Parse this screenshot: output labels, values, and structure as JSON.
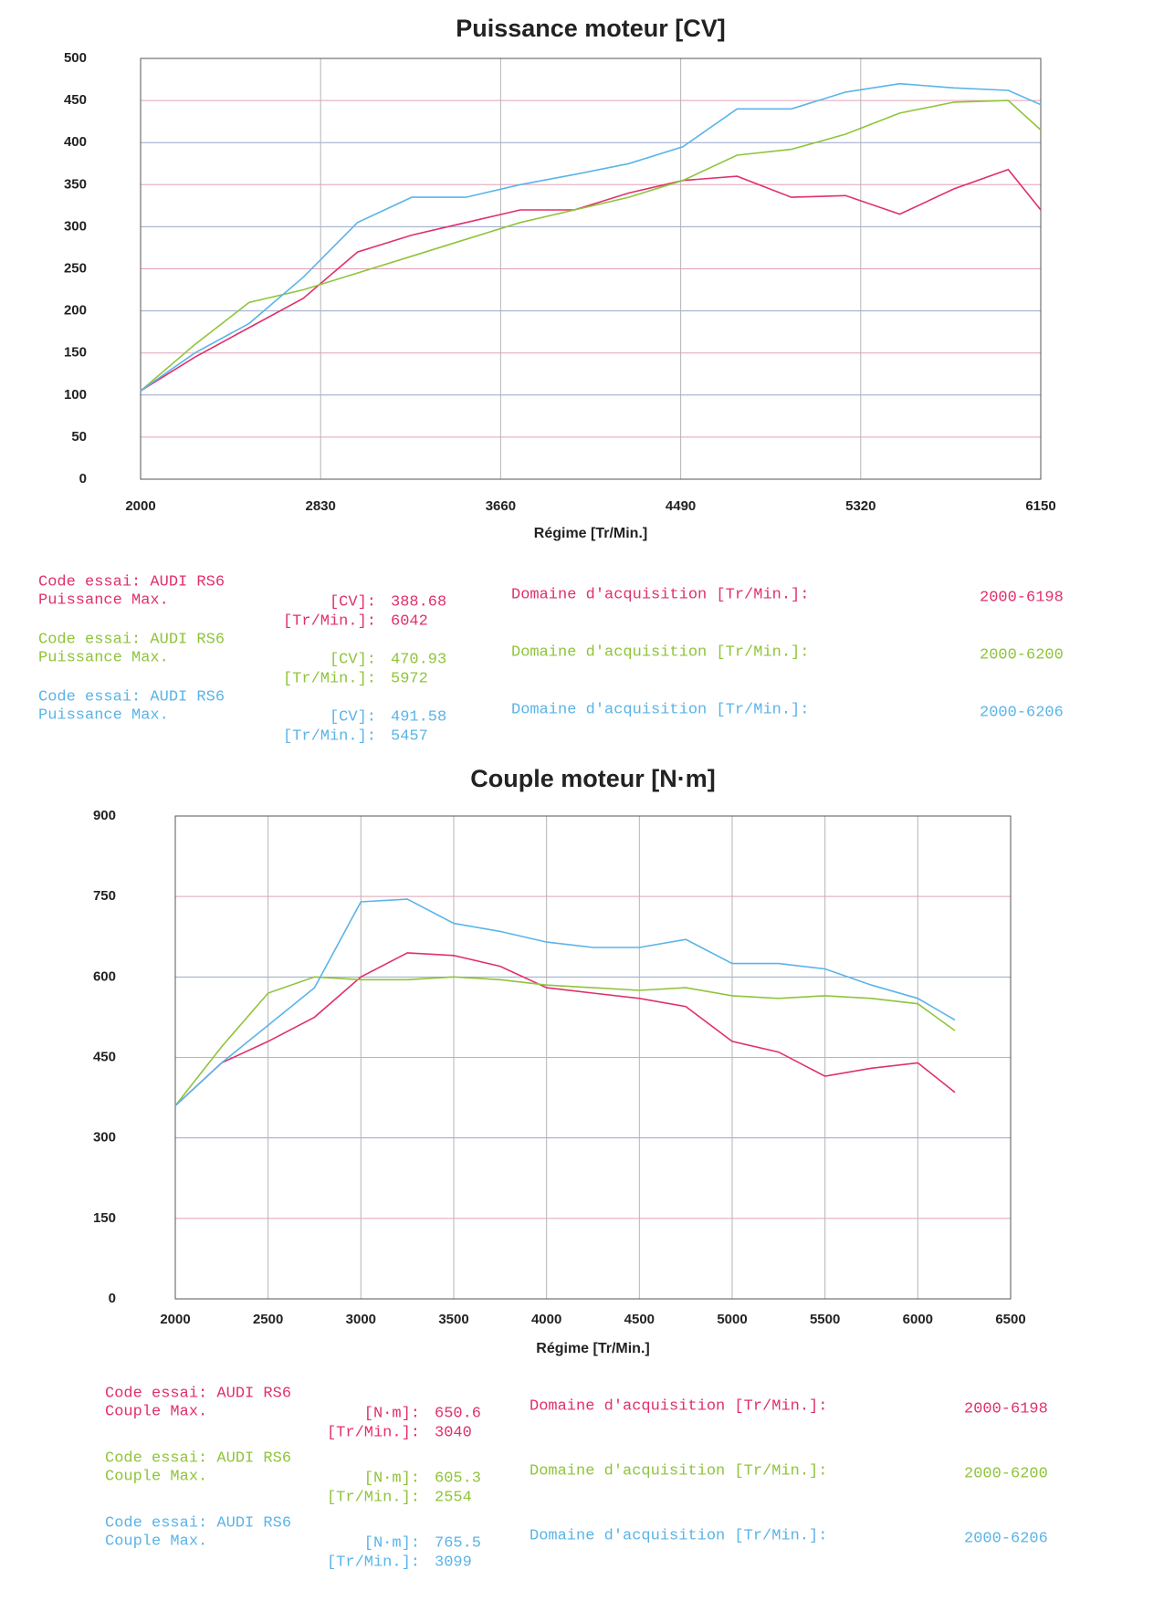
{
  "chart_data": [
    {
      "type": "line",
      "title": "Puissance moteur  [CV]",
      "x_label": "Régime [Tr/Min.]",
      "x": [
        2000,
        2250,
        2500,
        2750,
        3000,
        3250,
        3500,
        3750,
        4000,
        4250,
        4500,
        4750,
        5000,
        5250,
        5500,
        5750,
        6000,
        6150
      ],
      "xlim": [
        2000,
        6150
      ],
      "xticks": [
        2000,
        2830,
        3660,
        4490,
        5320,
        6150
      ],
      "ylim": [
        0,
        500
      ],
      "yticks": [
        0,
        50,
        100,
        150,
        200,
        250,
        300,
        350,
        400,
        450,
        500
      ],
      "grid": true,
      "series": [
        {
          "name": "AUDI RS6",
          "color": "#e0306a",
          "values": [
            105,
            145,
            180,
            215,
            270,
            290,
            305,
            320,
            320,
            340,
            355,
            360,
            335,
            337,
            315,
            345,
            368,
            320
          ]
        },
        {
          "name": "AUDI RS6",
          "color": "#8fc43a",
          "values": [
            105,
            160,
            210,
            225,
            245,
            265,
            285,
            305,
            320,
            335,
            355,
            385,
            392,
            410,
            435,
            448,
            450,
            415
          ]
        },
        {
          "name": "AUDI RS6",
          "color": "#5ab4e8",
          "values": [
            105,
            150,
            185,
            240,
            305,
            335,
            335,
            350,
            362,
            375,
            395,
            440,
            440,
            460,
            470,
            465,
            462,
            445
          ]
        }
      ],
      "results": [
        {
          "code": "Code essai: AUDI RS6",
          "max_label": "Puissance Max.",
          "unit_label": "[CV]:",
          "max_value": 388.68,
          "rpm_label": "[Tr/Min.]:",
          "rpm_value": 6042,
          "range_label": "Domaine d'acquisition [Tr/Min.]:",
          "range": "2000-6198"
        },
        {
          "code": "Code essai: AUDI RS6",
          "max_label": "Puissance Max.",
          "unit_label": "[CV]:",
          "max_value": 470.93,
          "rpm_label": "[Tr/Min.]:",
          "rpm_value": 5972,
          "range_label": "Domaine d'acquisition [Tr/Min.]:",
          "range": "2000-6200"
        },
        {
          "code": "Code essai: AUDI RS6",
          "max_label": "Puissance Max.",
          "unit_label": "[CV]:",
          "max_value": 491.58,
          "rpm_label": "[Tr/Min.]:",
          "rpm_value": 5457,
          "range_label": "Domaine d'acquisition [Tr/Min.]:",
          "range": "2000-6206"
        }
      ]
    },
    {
      "type": "line",
      "title": "Couple moteur [N·m]",
      "x_label": "Régime [Tr/Min.]",
      "x": [
        2000,
        2250,
        2500,
        2750,
        3000,
        3250,
        3500,
        3750,
        4000,
        4250,
        4500,
        4750,
        5000,
        5250,
        5500,
        5750,
        6000,
        6200
      ],
      "xlim": [
        2000,
        6500
      ],
      "xticks": [
        2000,
        2500,
        3000,
        3500,
        4000,
        4500,
        5000,
        5500,
        6000,
        6500
      ],
      "ylim": [
        0,
        900
      ],
      "yticks": [
        0,
        150,
        300,
        450,
        600,
        750,
        900
      ],
      "grid": true,
      "series": [
        {
          "name": "AUDI RS6",
          "color": "#e0306a",
          "values": [
            360,
            440,
            480,
            525,
            600,
            645,
            640,
            620,
            580,
            570,
            560,
            545,
            480,
            460,
            415,
            430,
            440,
            385
          ]
        },
        {
          "name": "AUDI RS6",
          "color": "#8fc43a",
          "values": [
            360,
            470,
            570,
            600,
            595,
            595,
            600,
            595,
            585,
            580,
            575,
            580,
            565,
            560,
            565,
            560,
            550,
            500
          ]
        },
        {
          "name": "AUDI RS6",
          "color": "#5ab4e8",
          "values": [
            360,
            440,
            510,
            580,
            740,
            745,
            700,
            685,
            665,
            655,
            655,
            670,
            625,
            625,
            615,
            585,
            560,
            520
          ]
        }
      ],
      "results": [
        {
          "code": "Code essai: AUDI RS6",
          "max_label": "Couple Max.",
          "unit_label": "[N·m]:",
          "max_value": 650.6,
          "rpm_label": "[Tr/Min.]:",
          "rpm_value": 3040,
          "range_label": "Domaine d'acquisition [Tr/Min.]:",
          "range": "2000-6198"
        },
        {
          "code": "Code essai: AUDI RS6",
          "max_label": "Couple Max.",
          "unit_label": "[N·m]:",
          "max_value": 605.3,
          "rpm_label": "[Tr/Min.]:",
          "rpm_value": 2554,
          "range_label": "Domaine d'acquisition [Tr/Min.]:",
          "range": "2000-6200"
        },
        {
          "code": "Code essai: AUDI RS6",
          "max_label": "Couple Max.",
          "unit_label": "[N·m]:",
          "max_value": 765.5,
          "rpm_label": "[Tr/Min.]:",
          "rpm_value": 3099,
          "range_label": "Domaine d'acquisition [Tr/Min.]:",
          "range": "2000-6206"
        }
      ]
    }
  ]
}
